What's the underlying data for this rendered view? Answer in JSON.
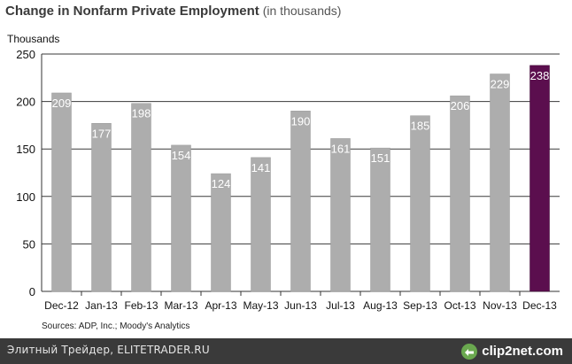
{
  "chart_data": {
    "type": "bar",
    "title": "Change in Nonfarm Private Employment",
    "subtitle": "(in thousands)",
    "ylabel": "Thousands",
    "xlabel": "",
    "ylim": [
      0,
      250
    ],
    "yticks": [
      0,
      50,
      100,
      150,
      200,
      250
    ],
    "grid": true,
    "categories": [
      "Dec-12",
      "Jan-13",
      "Feb-13",
      "Mar-13",
      "Apr-13",
      "May-13",
      "Jun-13",
      "Jul-13",
      "Aug-13",
      "Sep-13",
      "Oct-13",
      "Nov-13",
      "Dec-13"
    ],
    "values": [
      209,
      177,
      198,
      154,
      124,
      141,
      190,
      161,
      151,
      185,
      206,
      229,
      238
    ],
    "highlight_index": 12,
    "colors": {
      "bar": "#adadad",
      "highlight": "#5b0e4e",
      "label": "#ffffff",
      "grid": "#3a3a3a"
    }
  },
  "source_note": "Sources: ADP, Inc.; Moody's Analytics",
  "footer": {
    "site_text": "Элитный Трейдер, ELITETRADER.RU",
    "brand": "clip2net.com",
    "brand_icon": "clip2net-logo-icon"
  }
}
